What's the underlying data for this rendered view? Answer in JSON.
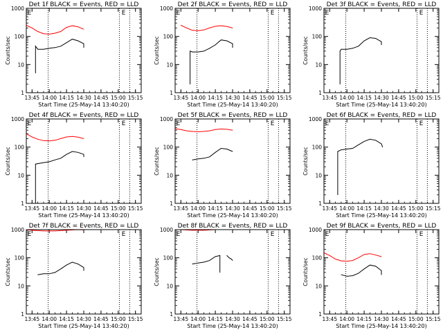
{
  "chart_data": [
    {
      "type": "line",
      "title": "Det 1f BLACK = Events, RED = LLD",
      "xlabel": "Start Time (25-May-14 13:40:20)",
      "ylabel": "Counts/sec",
      "yscale": "log",
      "ylim": [
        1,
        1000
      ],
      "xlim": [
        "13:40",
        "15:20"
      ],
      "x_ticks": [
        "13:45",
        "14:00",
        "14:15",
        "14:30",
        "14:45",
        "15:00",
        "15:15"
      ],
      "y_ticks": [
        "1",
        "10",
        "100",
        "1000"
      ],
      "vlines": [
        "13:59",
        "15:01",
        "15:10"
      ],
      "markers": [
        {
          "label": "E",
          "x": "13:41"
        },
        {
          "label": "E",
          "x": "15:03"
        }
      ],
      "series": [
        {
          "color": "#ff0000",
          "points": [
            [
              "13:40",
              250
            ],
            [
              "13:45",
              200
            ],
            [
              "13:50",
              150
            ],
            [
              "13:55",
              125
            ],
            [
              "14:00",
              120
            ],
            [
              "14:05",
              130
            ],
            [
              "14:10",
              150
            ],
            [
              "14:15",
              210
            ],
            [
              "14:20",
              240
            ],
            [
              "14:25",
              220
            ],
            [
              "14:30",
              180
            ]
          ]
        },
        {
          "color": "#000000",
          "points": [
            [
              "13:48",
              5
            ],
            [
              "13:48",
              45
            ],
            [
              "13:50",
              35
            ],
            [
              "13:55",
              35
            ],
            [
              "14:00",
              38
            ],
            [
              "14:05",
              40
            ],
            [
              "14:10",
              45
            ],
            [
              "14:15",
              60
            ],
            [
              "14:20",
              80
            ],
            [
              "14:25",
              70
            ],
            [
              "14:30",
              55
            ],
            [
              "14:30",
              40
            ]
          ]
        }
      ]
    },
    {
      "type": "line",
      "title": "Det 2f BLACK = Events, RED = LLD",
      "xlabel": "Start Time (25-May-14 13:40:20)",
      "ylabel": "Counts/sec",
      "yscale": "log",
      "ylim": [
        1,
        1000
      ],
      "xlim": [
        "13:40",
        "15:20"
      ],
      "x_ticks": [
        "13:45",
        "14:00",
        "14:15",
        "14:30",
        "14:45",
        "15:00",
        "15:15"
      ],
      "y_ticks": [
        "1",
        "10",
        "100",
        "1000"
      ],
      "vlines": [
        "13:59",
        "15:01",
        "15:10"
      ],
      "markers": [
        {
          "label": "E",
          "x": "13:41"
        },
        {
          "label": "E",
          "x": "15:03"
        }
      ],
      "series": [
        {
          "color": "#ff0000",
          "points": [
            [
              "13:45",
              250
            ],
            [
              "13:50",
              200
            ],
            [
              "13:55",
              165
            ],
            [
              "14:00",
              160
            ],
            [
              "14:05",
              170
            ],
            [
              "14:10",
              200
            ],
            [
              "14:15",
              230
            ],
            [
              "14:20",
              240
            ],
            [
              "14:25",
              225
            ],
            [
              "14:30",
              200
            ]
          ]
        },
        {
          "color": "#000000",
          "points": [
            [
              "13:53",
              2
            ],
            [
              "13:53",
              30
            ],
            [
              "13:55",
              28
            ],
            [
              "14:00",
              28
            ],
            [
              "14:05",
              30
            ],
            [
              "14:10",
              38
            ],
            [
              "14:15",
              50
            ],
            [
              "14:20",
              75
            ],
            [
              "14:25",
              70
            ],
            [
              "14:30",
              55
            ],
            [
              "14:30",
              40
            ]
          ]
        }
      ]
    },
    {
      "type": "line",
      "title": "Det 3f BLACK = Events, RED = LLD",
      "xlabel": "Start Time (25-May-14 13:40:20)",
      "ylabel": "Counts/sec",
      "yscale": "log",
      "ylim": [
        1,
        1000
      ],
      "xlim": [
        "13:40",
        "15:20"
      ],
      "x_ticks": [
        "13:45",
        "14:00",
        "14:15",
        "14:30",
        "14:45",
        "15:00",
        "15:15"
      ],
      "y_ticks": [
        "1",
        "10",
        "100",
        "1000"
      ],
      "vlines": [
        "13:59",
        "15:01",
        "15:10"
      ],
      "markers": [
        {
          "label": "E",
          "x": "13:41"
        },
        {
          "label": "E",
          "x": "15:03"
        }
      ],
      "series": [
        {
          "color": "#000000",
          "points": [
            [
              "13:54",
              2
            ],
            [
              "13:54",
              30
            ],
            [
              "13:55",
              35
            ],
            [
              "14:00",
              35
            ],
            [
              "14:05",
              38
            ],
            [
              "14:10",
              45
            ],
            [
              "14:15",
              70
            ],
            [
              "14:20",
              90
            ],
            [
              "14:25",
              85
            ],
            [
              "14:30",
              65
            ],
            [
              "14:30",
              50
            ]
          ]
        }
      ]
    },
    {
      "type": "line",
      "title": "Det 4f BLACK = Events, RED = LLD",
      "xlabel": "Start Time (25-May-14 13:40:20)",
      "ylabel": "Counts/sec",
      "yscale": "log",
      "ylim": [
        1,
        1000
      ],
      "xlim": [
        "13:40",
        "15:20"
      ],
      "x_ticks": [
        "13:45",
        "14:00",
        "14:15",
        "14:30",
        "14:45",
        "15:00",
        "15:15"
      ],
      "y_ticks": [
        "1",
        "10",
        "100",
        "1000"
      ],
      "vlines": [
        "13:59",
        "15:01",
        "15:10"
      ],
      "markers": [
        {
          "label": "E",
          "x": "13:41"
        },
        {
          "label": "E",
          "x": "15:03"
        }
      ],
      "series": [
        {
          "color": "#ff0000",
          "points": [
            [
              "13:40",
              300
            ],
            [
              "13:45",
              230
            ],
            [
              "13:50",
              190
            ],
            [
              "13:55",
              170
            ],
            [
              "14:00",
              165
            ],
            [
              "14:05",
              175
            ],
            [
              "14:10",
              200
            ],
            [
              "14:15",
              230
            ],
            [
              "14:20",
              240
            ],
            [
              "14:25",
              225
            ],
            [
              "14:30",
              200
            ]
          ]
        },
        {
          "color": "#000000",
          "points": [
            [
              "13:48",
              1
            ],
            [
              "13:48",
              25
            ],
            [
              "13:55",
              28
            ],
            [
              "14:00",
              30
            ],
            [
              "14:05",
              35
            ],
            [
              "14:10",
              40
            ],
            [
              "14:15",
              55
            ],
            [
              "14:20",
              70
            ],
            [
              "14:25",
              65
            ],
            [
              "14:30",
              55
            ],
            [
              "14:30",
              45
            ]
          ]
        }
      ]
    },
    {
      "type": "line",
      "title": "Det 5f BLACK = Events, RED = LLD",
      "xlabel": "Start Time (25-May-14 13:40:20)",
      "ylabel": "Counts/sec",
      "yscale": "log",
      "ylim": [
        1,
        1000
      ],
      "xlim": [
        "13:40",
        "15:20"
      ],
      "x_ticks": [
        "13:45",
        "14:00",
        "14:15",
        "14:30",
        "14:45",
        "15:00",
        "15:15"
      ],
      "y_ticks": [
        "1",
        "10",
        "100",
        "1000"
      ],
      "vlines": [
        "13:59",
        "15:01",
        "15:10"
      ],
      "markers": [
        {
          "label": "E",
          "x": "13:41"
        },
        {
          "label": "E",
          "x": "15:03"
        }
      ],
      "series": [
        {
          "color": "#ff0000",
          "points": [
            [
              "13:40",
              450
            ],
            [
              "13:45",
              420
            ],
            [
              "13:50",
              380
            ],
            [
              "13:55",
              360
            ],
            [
              "14:00",
              350
            ],
            [
              "14:05",
              360
            ],
            [
              "14:10",
              380
            ],
            [
              "14:15",
              420
            ],
            [
              "14:20",
              440
            ],
            [
              "14:25",
              430
            ],
            [
              "14:30",
              400
            ]
          ]
        },
        {
          "color": "#000000",
          "points": [
            [
              "13:55",
              35
            ],
            [
              "14:00",
              38
            ],
            [
              "14:05",
              40
            ],
            [
              "14:10",
              45
            ],
            [
              "14:15",
              65
            ],
            [
              "14:20",
              90
            ],
            [
              "14:25",
              85
            ],
            [
              "14:30",
              70
            ]
          ]
        }
      ]
    },
    {
      "type": "line",
      "title": "Det 6f BLACK = Events, RED = LLD",
      "xlabel": "Start Time (25-May-14 13:40:20)",
      "ylabel": "Counts/sec",
      "yscale": "log",
      "ylim": [
        1,
        1000
      ],
      "xlim": [
        "13:40",
        "15:20"
      ],
      "x_ticks": [
        "13:45",
        "14:00",
        "14:15",
        "14:30",
        "14:45",
        "15:00",
        "15:15"
      ],
      "y_ticks": [
        "1",
        "10",
        "100",
        "1000"
      ],
      "vlines": [
        "13:59",
        "15:01",
        "15:10"
      ],
      "markers": [
        {
          "label": "E",
          "x": "13:41"
        },
        {
          "label": "E",
          "x": "15:03"
        }
      ],
      "series": [
        {
          "color": "#000000",
          "points": [
            [
              "13:52",
              2
            ],
            [
              "13:52",
              70
            ],
            [
              "13:55",
              80
            ],
            [
              "14:00",
              85
            ],
            [
              "14:05",
              90
            ],
            [
              "14:10",
              120
            ],
            [
              "14:15",
              160
            ],
            [
              "14:20",
              190
            ],
            [
              "14:25",
              175
            ],
            [
              "14:30",
              130
            ],
            [
              "14:31",
              100
            ]
          ]
        }
      ]
    },
    {
      "type": "line",
      "title": "Det 7f BLACK = Events, RED = LLD",
      "xlabel": "Start Time (25-May-14 13:40:20)",
      "ylabel": "Counts/sec",
      "yscale": "log",
      "ylim": [
        1,
        1000
      ],
      "xlim": [
        "13:40",
        "15:20"
      ],
      "x_ticks": [
        "13:45",
        "14:00",
        "14:15",
        "14:30",
        "14:45",
        "15:00",
        "15:15"
      ],
      "y_ticks": [
        "1",
        "10",
        "100",
        "1000"
      ],
      "vlines": [
        "13:59",
        "15:01",
        "15:10"
      ],
      "markers": [
        {
          "label": "E",
          "x": "13:41"
        },
        {
          "label": "E",
          "x": "15:03"
        }
      ],
      "series": [
        {
          "color": "#ff0000",
          "points": [
            [
              "13:40",
              1000
            ],
            [
              "13:45",
              950
            ],
            [
              "13:55",
              900
            ],
            [
              "14:05",
              900
            ],
            [
              "14:15",
              950
            ],
            [
              "14:25",
              1000
            ],
            [
              "14:30",
              980
            ]
          ]
        },
        {
          "color": "#000000",
          "points": [
            [
              "13:50",
              25
            ],
            [
              "13:55",
              27
            ],
            [
              "14:00",
              27
            ],
            [
              "14:05",
              30
            ],
            [
              "14:10",
              40
            ],
            [
              "14:15",
              55
            ],
            [
              "14:20",
              70
            ],
            [
              "14:25",
              60
            ],
            [
              "14:30",
              45
            ],
            [
              "14:30",
              35
            ]
          ]
        }
      ]
    },
    {
      "type": "line",
      "title": "Det 8f BLACK = Events, RED = LLD",
      "xlabel": "Start Time (25-May-14 13:40:20)",
      "ylabel": "Counts/sec",
      "yscale": "log",
      "ylim": [
        1,
        1000
      ],
      "xlim": [
        "13:40",
        "15:20"
      ],
      "x_ticks": [
        "13:45",
        "14:00",
        "14:15",
        "14:30",
        "14:45",
        "15:00",
        "15:15"
      ],
      "y_ticks": [
        "1",
        "10",
        "100",
        "1000"
      ],
      "vlines": [
        "13:59",
        "15:01",
        "15:10"
      ],
      "markers": [
        {
          "label": "E",
          "x": "13:41"
        },
        {
          "label": "E",
          "x": "15:03"
        }
      ],
      "series": [
        {
          "color": "#ff0000",
          "points": [
            [
              "13:45",
              1000
            ],
            [
              "13:55",
              950
            ],
            [
              "14:05",
              950
            ],
            [
              "14:15",
              1000
            ],
            [
              "14:25",
              1000
            ]
          ]
        },
        {
          "color": "#000000",
          "points": [
            [
              "13:55",
              60
            ],
            [
              "14:00",
              65
            ],
            [
              "14:05",
              70
            ],
            [
              "14:10",
              80
            ],
            [
              "14:15",
              110
            ],
            [
              "14:19",
              120
            ],
            [
              "14:19",
              30
            ]
          ]
        },
        {
          "color": "#000000",
          "points": [
            [
              "14:25",
              120
            ],
            [
              "14:27",
              100
            ],
            [
              "14:29",
              90
            ],
            [
              "14:30",
              80
            ]
          ]
        }
      ]
    },
    {
      "type": "line",
      "title": "Det 9f BLACK = Events, RED = LLD",
      "xlabel": "Start Time (25-May-14 13:40:20)",
      "ylabel": "Counts/sec",
      "yscale": "log",
      "ylim": [
        1,
        1000
      ],
      "xlim": [
        "13:40",
        "15:20"
      ],
      "x_ticks": [
        "13:45",
        "14:00",
        "14:15",
        "14:30",
        "14:45",
        "15:00",
        "15:15"
      ],
      "y_ticks": [
        "1",
        "10",
        "100",
        "1000"
      ],
      "vlines": [
        "13:59",
        "15:01",
        "15:10"
      ],
      "markers": [
        {
          "label": "E",
          "x": "13:41"
        },
        {
          "label": "E",
          "x": "15:03"
        }
      ],
      "series": [
        {
          "color": "#ff0000",
          "points": [
            [
              "13:40",
              150
            ],
            [
              "13:45",
              120
            ],
            [
              "13:50",
              90
            ],
            [
              "13:55",
              78
            ],
            [
              "14:00",
              75
            ],
            [
              "14:05",
              80
            ],
            [
              "14:10",
              100
            ],
            [
              "14:15",
              130
            ],
            [
              "14:20",
              140
            ],
            [
              "14:25",
              125
            ],
            [
              "14:30",
              110
            ]
          ]
        },
        {
          "color": "#000000",
          "points": [
            [
              "13:55",
              25
            ],
            [
              "14:00",
              22
            ],
            [
              "14:05",
              23
            ],
            [
              "14:10",
              28
            ],
            [
              "14:15",
              40
            ],
            [
              "14:20",
              55
            ],
            [
              "14:25",
              50
            ],
            [
              "14:30",
              35
            ],
            [
              "14:30",
              25
            ]
          ]
        }
      ]
    }
  ]
}
